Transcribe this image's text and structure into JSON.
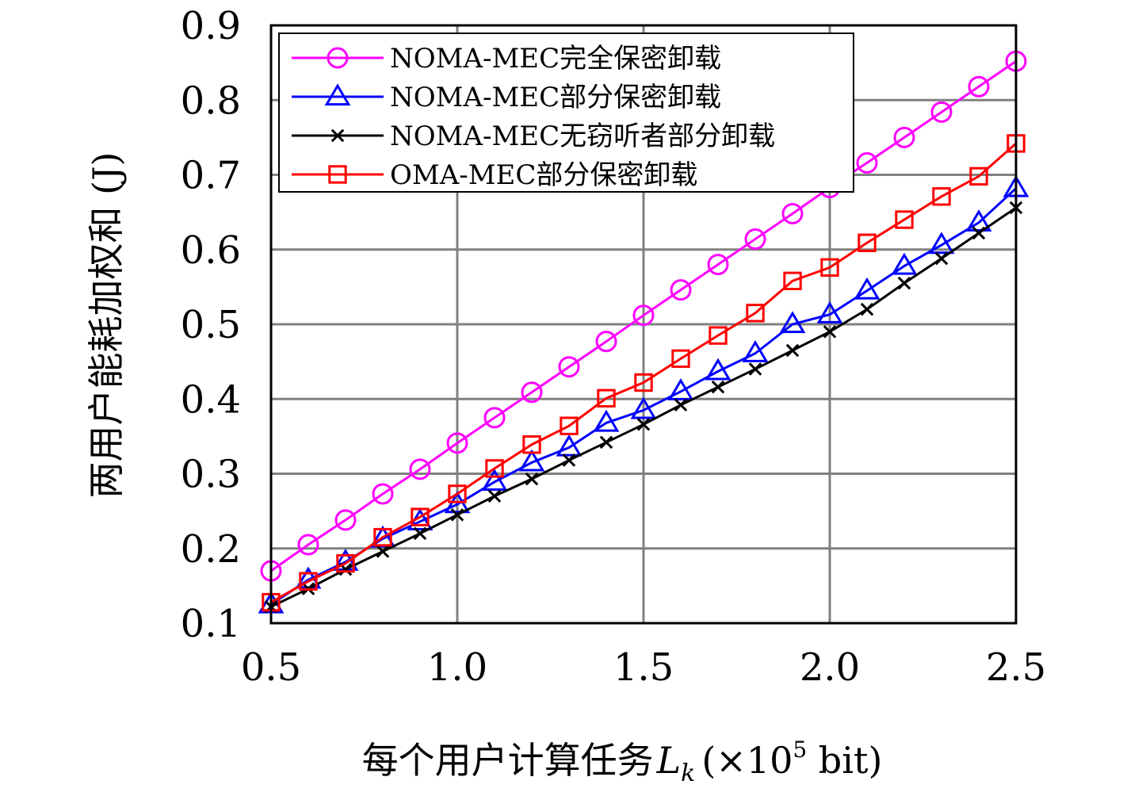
{
  "chart_data": {
    "type": "line",
    "title": "",
    "xlabel": "每个用户计算任务",
    "xlabel_symbol": "L",
    "xlabel_subscript": "k",
    "xlabel_unit_prefix": "(×10",
    "xlabel_unit_exp": "5",
    "xlabel_unit_suffix": " bit)",
    "ylabel": "两用户能耗加权和 (J)",
    "xlim": [
      0.5,
      2.5
    ],
    "ylim": [
      0.1,
      0.9
    ],
    "xticks": [
      "0.5",
      "1.0",
      "1.5",
      "2.0",
      "2.5"
    ],
    "yticks": [
      "0.1",
      "0.2",
      "0.3",
      "0.4",
      "0.5",
      "0.6",
      "0.7",
      "0.8",
      "0.9"
    ],
    "grid": true,
    "legend_position": "top-left",
    "x": [
      0.5,
      0.6,
      0.7,
      0.8,
      0.9,
      1.0,
      1.1,
      1.2,
      1.3,
      1.4,
      1.5,
      1.6,
      1.7,
      1.8,
      1.9,
      2.0,
      2.1,
      2.2,
      2.3,
      2.4,
      2.5
    ],
    "series": [
      {
        "name": "NOMA-MEC完全保密卸载",
        "color": "#ff00ff",
        "marker": "circle",
        "values": [
          0.17,
          0.205,
          0.238,
          0.273,
          0.306,
          0.341,
          0.375,
          0.409,
          0.443,
          0.477,
          0.512,
          0.546,
          0.58,
          0.614,
          0.648,
          0.683,
          0.716,
          0.75,
          0.784,
          0.818,
          0.852
        ]
      },
      {
        "name": "NOMA-MEC部分保密卸载",
        "color": "#0000ff",
        "marker": "triangle",
        "values": [
          0.125,
          0.158,
          0.182,
          0.213,
          0.236,
          0.259,
          0.289,
          0.315,
          0.335,
          0.368,
          0.385,
          0.41,
          0.437,
          0.461,
          0.5,
          0.513,
          0.545,
          0.578,
          0.606,
          0.636,
          0.682
        ]
      },
      {
        "name": "NOMA-MEC无窃听者部分卸载",
        "color": "#000000",
        "marker": "x",
        "values": [
          0.122,
          0.146,
          0.172,
          0.196,
          0.22,
          0.245,
          0.27,
          0.293,
          0.318,
          0.342,
          0.366,
          0.392,
          0.416,
          0.44,
          0.465,
          0.49,
          0.52,
          0.555,
          0.588,
          0.622,
          0.656
        ]
      },
      {
        "name": "OMA-MEC部分保密卸载",
        "color": "#ff0000",
        "marker": "square",
        "values": [
          0.128,
          0.156,
          0.18,
          0.215,
          0.242,
          0.273,
          0.307,
          0.339,
          0.364,
          0.401,
          0.422,
          0.454,
          0.485,
          0.515,
          0.558,
          0.576,
          0.609,
          0.64,
          0.671,
          0.698,
          0.742
        ]
      }
    ]
  }
}
